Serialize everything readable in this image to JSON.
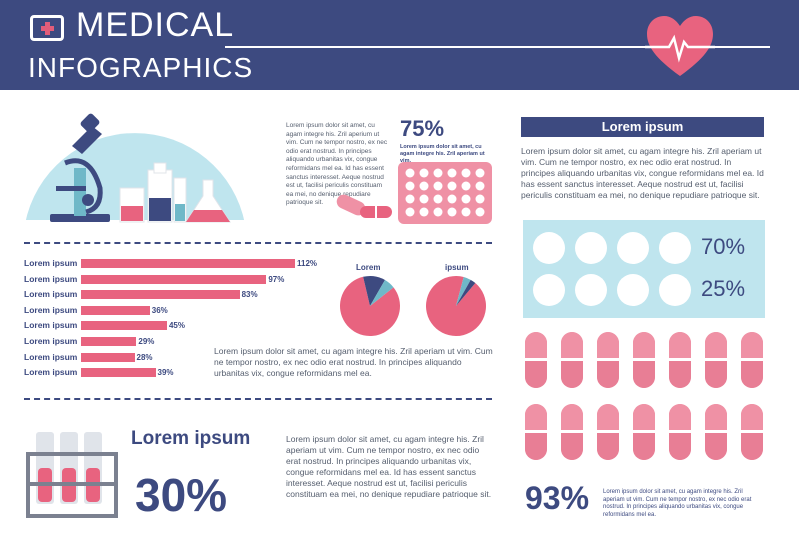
{
  "header": {
    "title_line1": "MEDICAL",
    "title_line2": "INFOGRAPHICS"
  },
  "intro": {
    "text": "Lorem ipsum dolor sit amet, cu agam integre his. Zril aperium ut vim. Cum ne tempor nostro, ex nec odio erat nostrud. In principes aliquando urbanitas vix, congue reformidans mel ea. Id has essent sanctus interesset. Aeque nostrud est ut, facilisi periculis constituam ea mei, no denique repudiare patrioque sit."
  },
  "pills_stat": {
    "percent": "75%",
    "caption": "Lorem ipsum dolor sit amet, cu agam integre his. Zril aperiam ut vim."
  },
  "right_panel": {
    "heading": "Lorem ipsum",
    "text": "Lorem ipsum dolor sit amet, cu agam integre his. Zril aperiam ut vim. Cum ne tempor nostro, ex nec odio erat nostrud. In principes aliquando urbanitas vix, congue reformidans mel ea. Id has essent sanctus interesset. Aeque nostrud est ut, facilisi periculis constituam ea mei, no denique repudiare patrioque sit.",
    "blister_pct_1": "70%",
    "blister_pct_2": "25%"
  },
  "bar_chart": {
    "rows": [
      {
        "label": "Lorem ipsum",
        "value": 112,
        "text": "112%"
      },
      {
        "label": "Lorem ipsum",
        "value": 97,
        "text": "97%"
      },
      {
        "label": "Lorem ipsum",
        "value": 83,
        "text": "83%"
      },
      {
        "label": "Lorem ipsum",
        "value": 36,
        "text": "36%"
      },
      {
        "label": "Lorem ipsum",
        "value": 45,
        "text": "45%"
      },
      {
        "label": "Lorem ipsum",
        "value": 29,
        "text": "29%"
      },
      {
        "label": "Lorem ipsum",
        "value": 28,
        "text": "28%"
      },
      {
        "label": "Lorem ipsum",
        "value": 39,
        "text": "39%"
      }
    ],
    "max": 112
  },
  "pies": [
    {
      "label": "Lorem",
      "slices": [
        0.82,
        0.12,
        0.06
      ],
      "colors": [
        "#e8637f",
        "#3d4a80",
        "#6fb8c8"
      ]
    },
    {
      "label": "ipsum",
      "slices": [
        0.93,
        0.04,
        0.03
      ],
      "colors": [
        "#e8637f",
        "#6fb8c8",
        "#3d4a80"
      ]
    }
  ],
  "middle_text": "Lorem ipsum dolor sit amet, cu agam integre his. Zril aperiam ut vim. Cum ne tempor nostro, ex nec odio erat nostrud. In principes aliquando urbanitas vix, congue reformidans mel ea.",
  "bottom": {
    "heading": "Lorem ipsum",
    "percent": "30%",
    "text": "Lorem ipsum dolor sit amet, cu agam integre his. Zril aperiam ut vim. Cum ne tempor nostro, ex nec odio erat nostrud. In principes aliquando urbanitas vix, congue reformidans mel ea. Id has essent sanctus interesset. Aeque nostrud est ut, facilisi periculis constituam ea mei, no denique repudiare patrioque sit."
  },
  "capsules_stat": {
    "percent": "93%",
    "caption": "Lorem ipsum dolor sit amet, cu agam integre his. Zril aperiam ut vim. Cum ne tempor nostro, ex nec odio erat nostrud. In principes aliquando urbanitas vix, congue reformidans mel ea."
  },
  "colors": {
    "navy": "#3d4a80",
    "pink": "#e8637f",
    "light_blue": "#bfe5ee",
    "accent_blue": "#6fb8c8"
  }
}
